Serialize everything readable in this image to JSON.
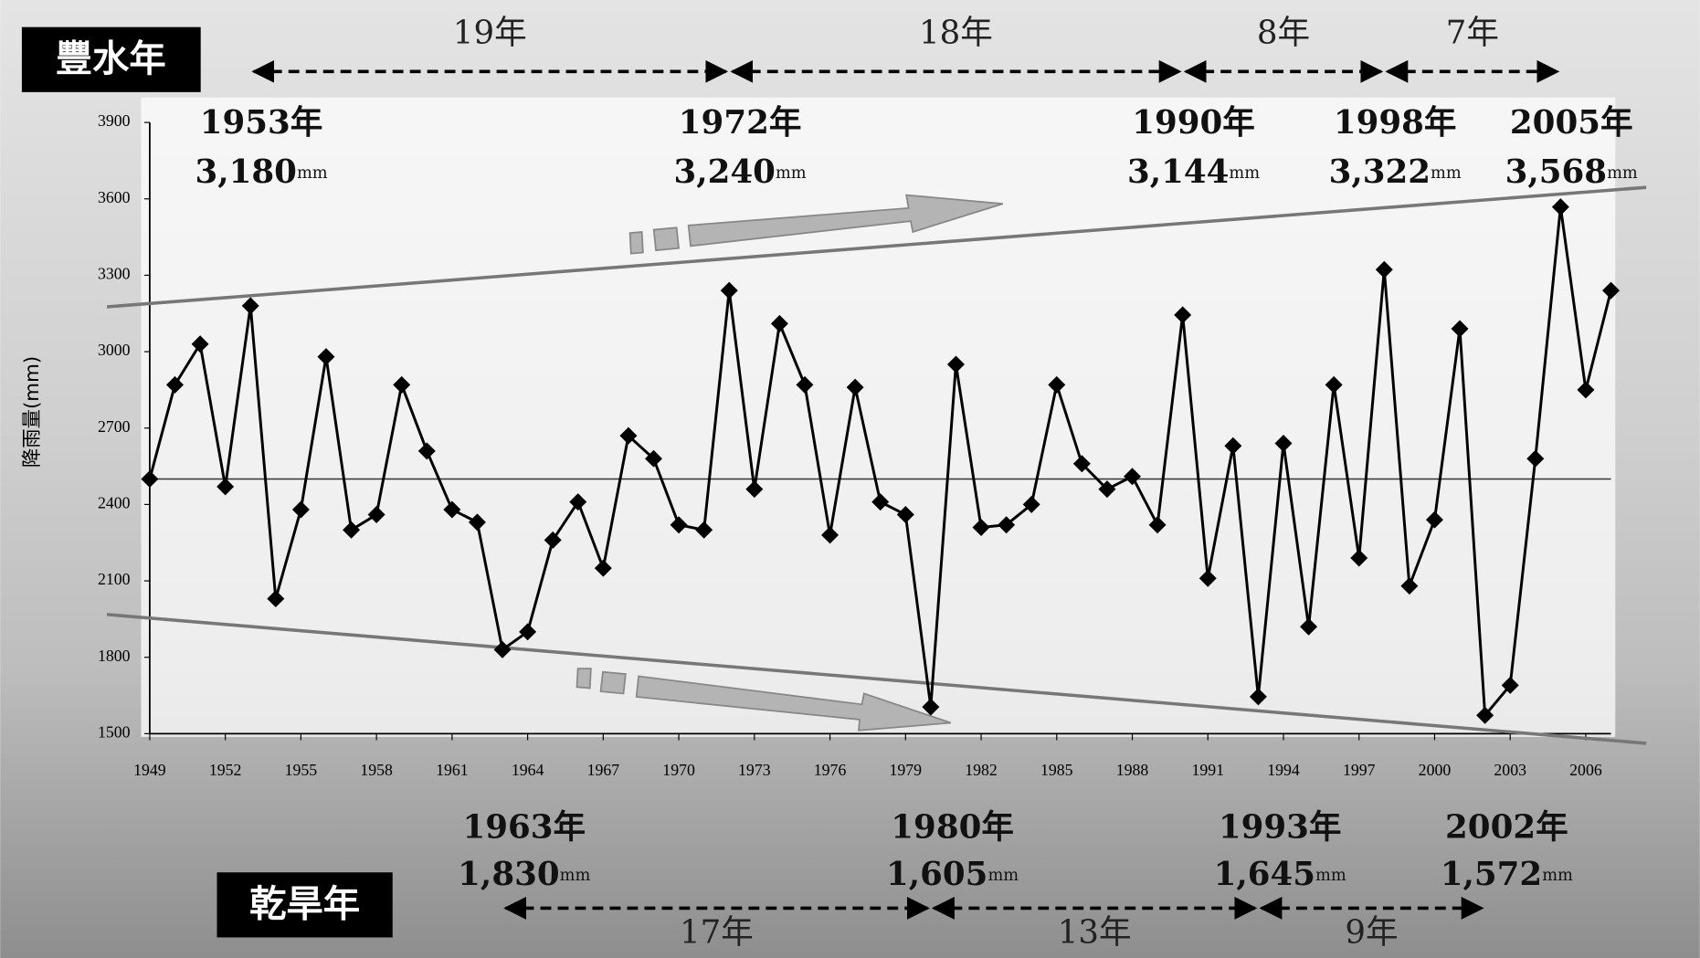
{
  "chart_data": {
    "type": "line",
    "y_label": "降雨量(mm)",
    "x": [
      1949,
      1950,
      1951,
      1952,
      1953,
      1954,
      1955,
      1956,
      1957,
      1958,
      1959,
      1960,
      1961,
      1962,
      1963,
      1964,
      1965,
      1966,
      1967,
      1968,
      1969,
      1970,
      1971,
      1972,
      1973,
      1974,
      1975,
      1976,
      1977,
      1978,
      1979,
      1980,
      1981,
      1982,
      1983,
      1984,
      1985,
      1986,
      1987,
      1988,
      1989,
      1990,
      1991,
      1992,
      1993,
      1994,
      1995,
      1996,
      1997,
      1998,
      1999,
      2000,
      2001,
      2002,
      2003,
      2004,
      2005,
      2006,
      2007
    ],
    "values": [
      2500,
      2870,
      3030,
      2470,
      3180,
      2030,
      2380,
      2980,
      2300,
      2360,
      2870,
      2610,
      2380,
      2330,
      1830,
      1900,
      2260,
      2410,
      2150,
      2670,
      2580,
      2320,
      2300,
      3240,
      2460,
      3110,
      2870,
      2280,
      2860,
      2410,
      2360,
      1605,
      2950,
      2310,
      2320,
      2400,
      2870,
      2560,
      2460,
      2510,
      2320,
      3144,
      2110,
      2630,
      1645,
      2640,
      1920,
      2870,
      2190,
      3322,
      2080,
      2340,
      3090,
      1572,
      1690,
      2580,
      3568,
      2850,
      3240
    ],
    "color": "#000000",
    "xlim": [
      1949,
      2007
    ],
    "xticks": [
      1949,
      1952,
      1955,
      1958,
      1961,
      1964,
      1967,
      1970,
      1973,
      1976,
      1979,
      1982,
      1985,
      1988,
      1991,
      1994,
      1997,
      2000,
      2003,
      2006
    ],
    "ylim": [
      1500,
      3900
    ],
    "yticks": [
      1500,
      1800,
      2100,
      2400,
      2700,
      3000,
      3300,
      3600,
      3900
    ],
    "grid": false,
    "reference_line": 2500,
    "trend_lines": [
      {
        "x": [
          1947.3,
          2008.4
        ],
        "values": [
          3176,
          3645
        ],
        "color": "#777777"
      },
      {
        "x": [
          1947.3,
          2008.4
        ],
        "values": [
          1968,
          1462
        ],
        "color": "#777777"
      }
    ],
    "annotations": [
      {
        "x": 1953,
        "year": "1953年",
        "value": "3,180",
        "unit": "mm",
        "side": "top"
      },
      {
        "x": 1972,
        "year": "1972年",
        "value": "3,240",
        "unit": "mm",
        "side": "top"
      },
      {
        "x": 1990,
        "year": "1990年",
        "value": "3,144",
        "unit": "mm",
        "side": "top"
      },
      {
        "x": 1998,
        "year": "1998年",
        "value": "3,322",
        "unit": "mm",
        "side": "top"
      },
      {
        "x": 2005,
        "year": "2005年",
        "value": "3,568",
        "unit": "mm",
        "side": "top"
      },
      {
        "x": 1963,
        "year": "1963年",
        "value": "1,830",
        "unit": "mm",
        "side": "bottom"
      },
      {
        "x": 1980,
        "year": "1980年",
        "value": "1,605",
        "unit": "mm",
        "side": "bottom"
      },
      {
        "x": 1993,
        "year": "1993年",
        "value": "1,645",
        "unit": "mm",
        "side": "bottom"
      },
      {
        "x": 2002,
        "year": "2002年",
        "value": "1,572",
        "unit": "mm",
        "side": "bottom"
      }
    ],
    "periods": {
      "top": {
        "title": "豐水年",
        "spans": [
          {
            "from": 1953,
            "to": 1972,
            "label": "19年"
          },
          {
            "from": 1972,
            "to": 1990,
            "label": "18年"
          },
          {
            "from": 1990,
            "to": 1998,
            "label": "8年"
          },
          {
            "from": 1998,
            "to": 2005,
            "label": "7年"
          }
        ]
      },
      "bottom": {
        "title": "乾旱年",
        "spans": [
          {
            "from": 1963,
            "to": 1980,
            "label": "17年"
          },
          {
            "from": 1980,
            "to": 1993,
            "label": "13年"
          },
          {
            "from": 1993,
            "to": 2002,
            "label": "9年"
          }
        ]
      }
    }
  }
}
